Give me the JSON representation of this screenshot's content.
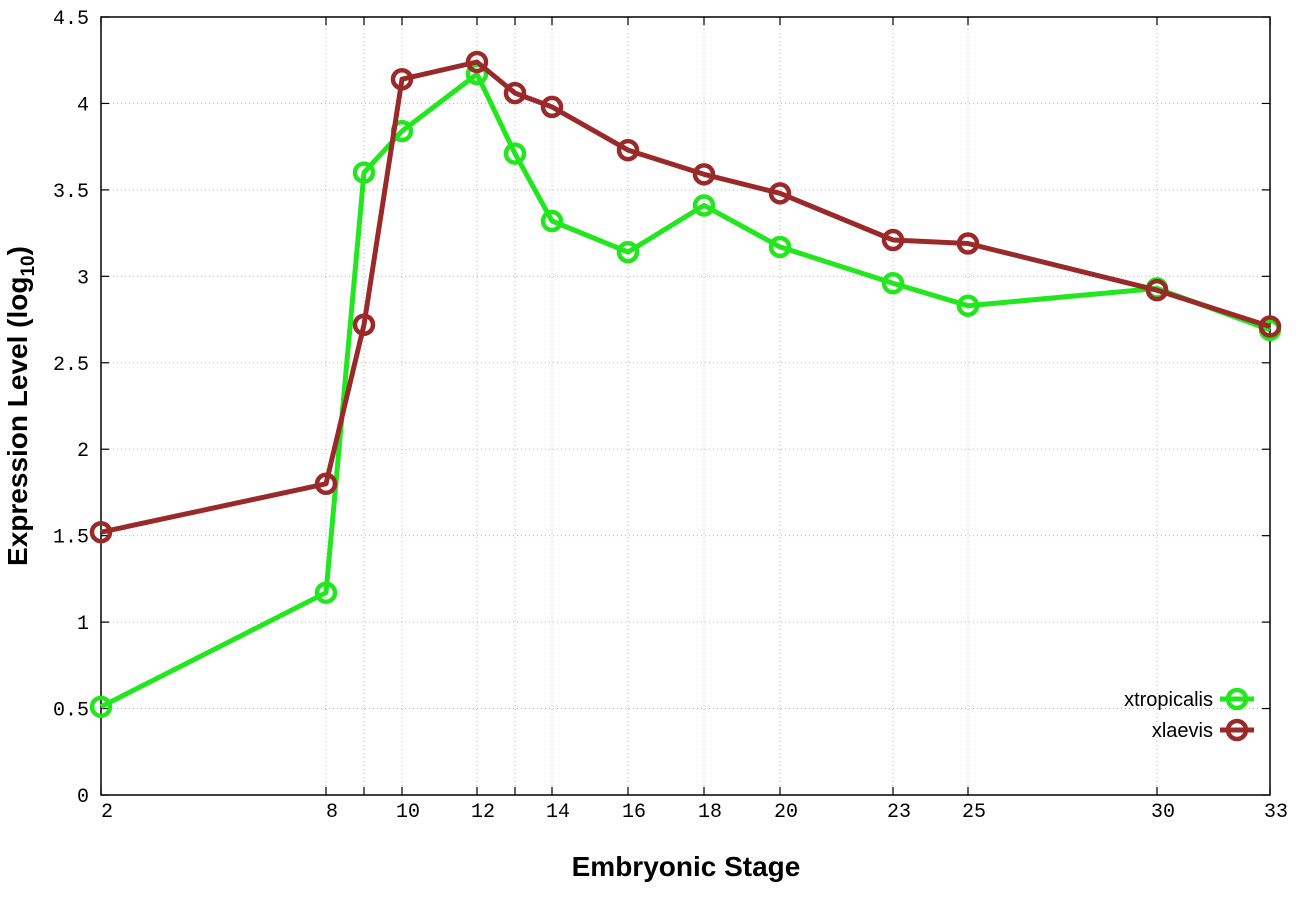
{
  "chart_data": {
    "type": "line",
    "title": "",
    "xlabel": "Embryonic Stage",
    "ylabel_main": "Expression Level (log",
    "ylabel_sub": "10",
    "ylabel_close": ")",
    "x_ticks": [
      {
        "value": 2,
        "label": "2"
      },
      {
        "value": 8,
        "label": "8"
      },
      {
        "value": 9,
        "label": ""
      },
      {
        "value": 10,
        "label": "10"
      },
      {
        "value": 12,
        "label": "12"
      },
      {
        "value": 13,
        "label": ""
      },
      {
        "value": 14,
        "label": "14"
      },
      {
        "value": 16,
        "label": "16"
      },
      {
        "value": 18,
        "label": "18"
      },
      {
        "value": 20,
        "label": "20"
      },
      {
        "value": 23,
        "label": "23"
      },
      {
        "value": 25,
        "label": "25"
      },
      {
        "value": 30,
        "label": "30"
      },
      {
        "value": 33,
        "label": "33"
      }
    ],
    "y_ticks": [
      {
        "value": 0,
        "label": "0"
      },
      {
        "value": 0.5,
        "label": "0.5"
      },
      {
        "value": 1,
        "label": "1"
      },
      {
        "value": 1.5,
        "label": "1.5"
      },
      {
        "value": 2,
        "label": "2"
      },
      {
        "value": 2.5,
        "label": "2.5"
      },
      {
        "value": 3,
        "label": "3"
      },
      {
        "value": 3.5,
        "label": "3.5"
      },
      {
        "value": 4,
        "label": "4"
      },
      {
        "value": 4.5,
        "label": "4.5"
      }
    ],
    "ylim": [
      0,
      4.5
    ],
    "grid": true,
    "legend_position": "bottom-right",
    "x": [
      2,
      8,
      9,
      10,
      12,
      13,
      14,
      16,
      18,
      20,
      23,
      25,
      30,
      33
    ],
    "series": [
      {
        "name": "xtropicalis",
        "color": "#22e61e",
        "values": [
          0.51,
          1.17,
          3.6,
          3.84,
          4.17,
          3.71,
          3.32,
          3.14,
          3.41,
          3.17,
          2.96,
          2.83,
          2.93,
          2.69
        ]
      },
      {
        "name": "xlaevis",
        "color": "#9a2a2a",
        "values": [
          1.52,
          1.8,
          2.72,
          4.14,
          4.24,
          4.06,
          3.98,
          3.73,
          3.59,
          3.48,
          3.21,
          3.19,
          2.92,
          2.71
        ]
      }
    ]
  }
}
